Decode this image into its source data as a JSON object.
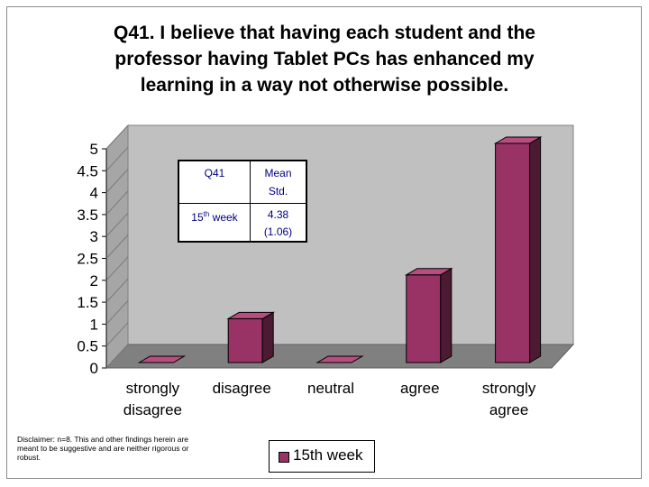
{
  "chart_data": {
    "type": "bar",
    "title_lines": [
      "Q41. I believe that having each student and the",
      "professor having Tablet PCs has enhanced my",
      "learning in a way not otherwise possible."
    ],
    "categories": [
      [
        "strongly",
        "disagree"
      ],
      [
        "disagree"
      ],
      [
        "neutral"
      ],
      [
        "agree"
      ],
      [
        "strongly",
        "agree"
      ]
    ],
    "series": [
      {
        "name": "15th week",
        "values": [
          0,
          1,
          0,
          2,
          5
        ]
      }
    ],
    "ylim": [
      0,
      5
    ],
    "yticks": [
      "0",
      "0.5",
      "1",
      "1.5",
      "2",
      "2.5",
      "3",
      "3.5",
      "4",
      "4.5",
      "5"
    ],
    "bar_color": "#993366",
    "bar_side_color": "#4d1a33",
    "bar_top_color": "#b84d80",
    "plot_wall_color": "#c0c0c0",
    "floor_color": "#808080",
    "legend_placement": "bottom"
  },
  "stats_table": {
    "header_q": "Q41",
    "header_mean": "Mean",
    "header_std": "Std.",
    "row_label": "15",
    "row_label_sup": "th",
    "row_label_rest": " week",
    "mean": "4.38",
    "std": "(1.06)"
  },
  "disclaimer": "Disclaimer:  n=8.  This and other findings herein are meant to be suggestive and are neither rigorous or robust.",
  "legend_label": "15th week"
}
